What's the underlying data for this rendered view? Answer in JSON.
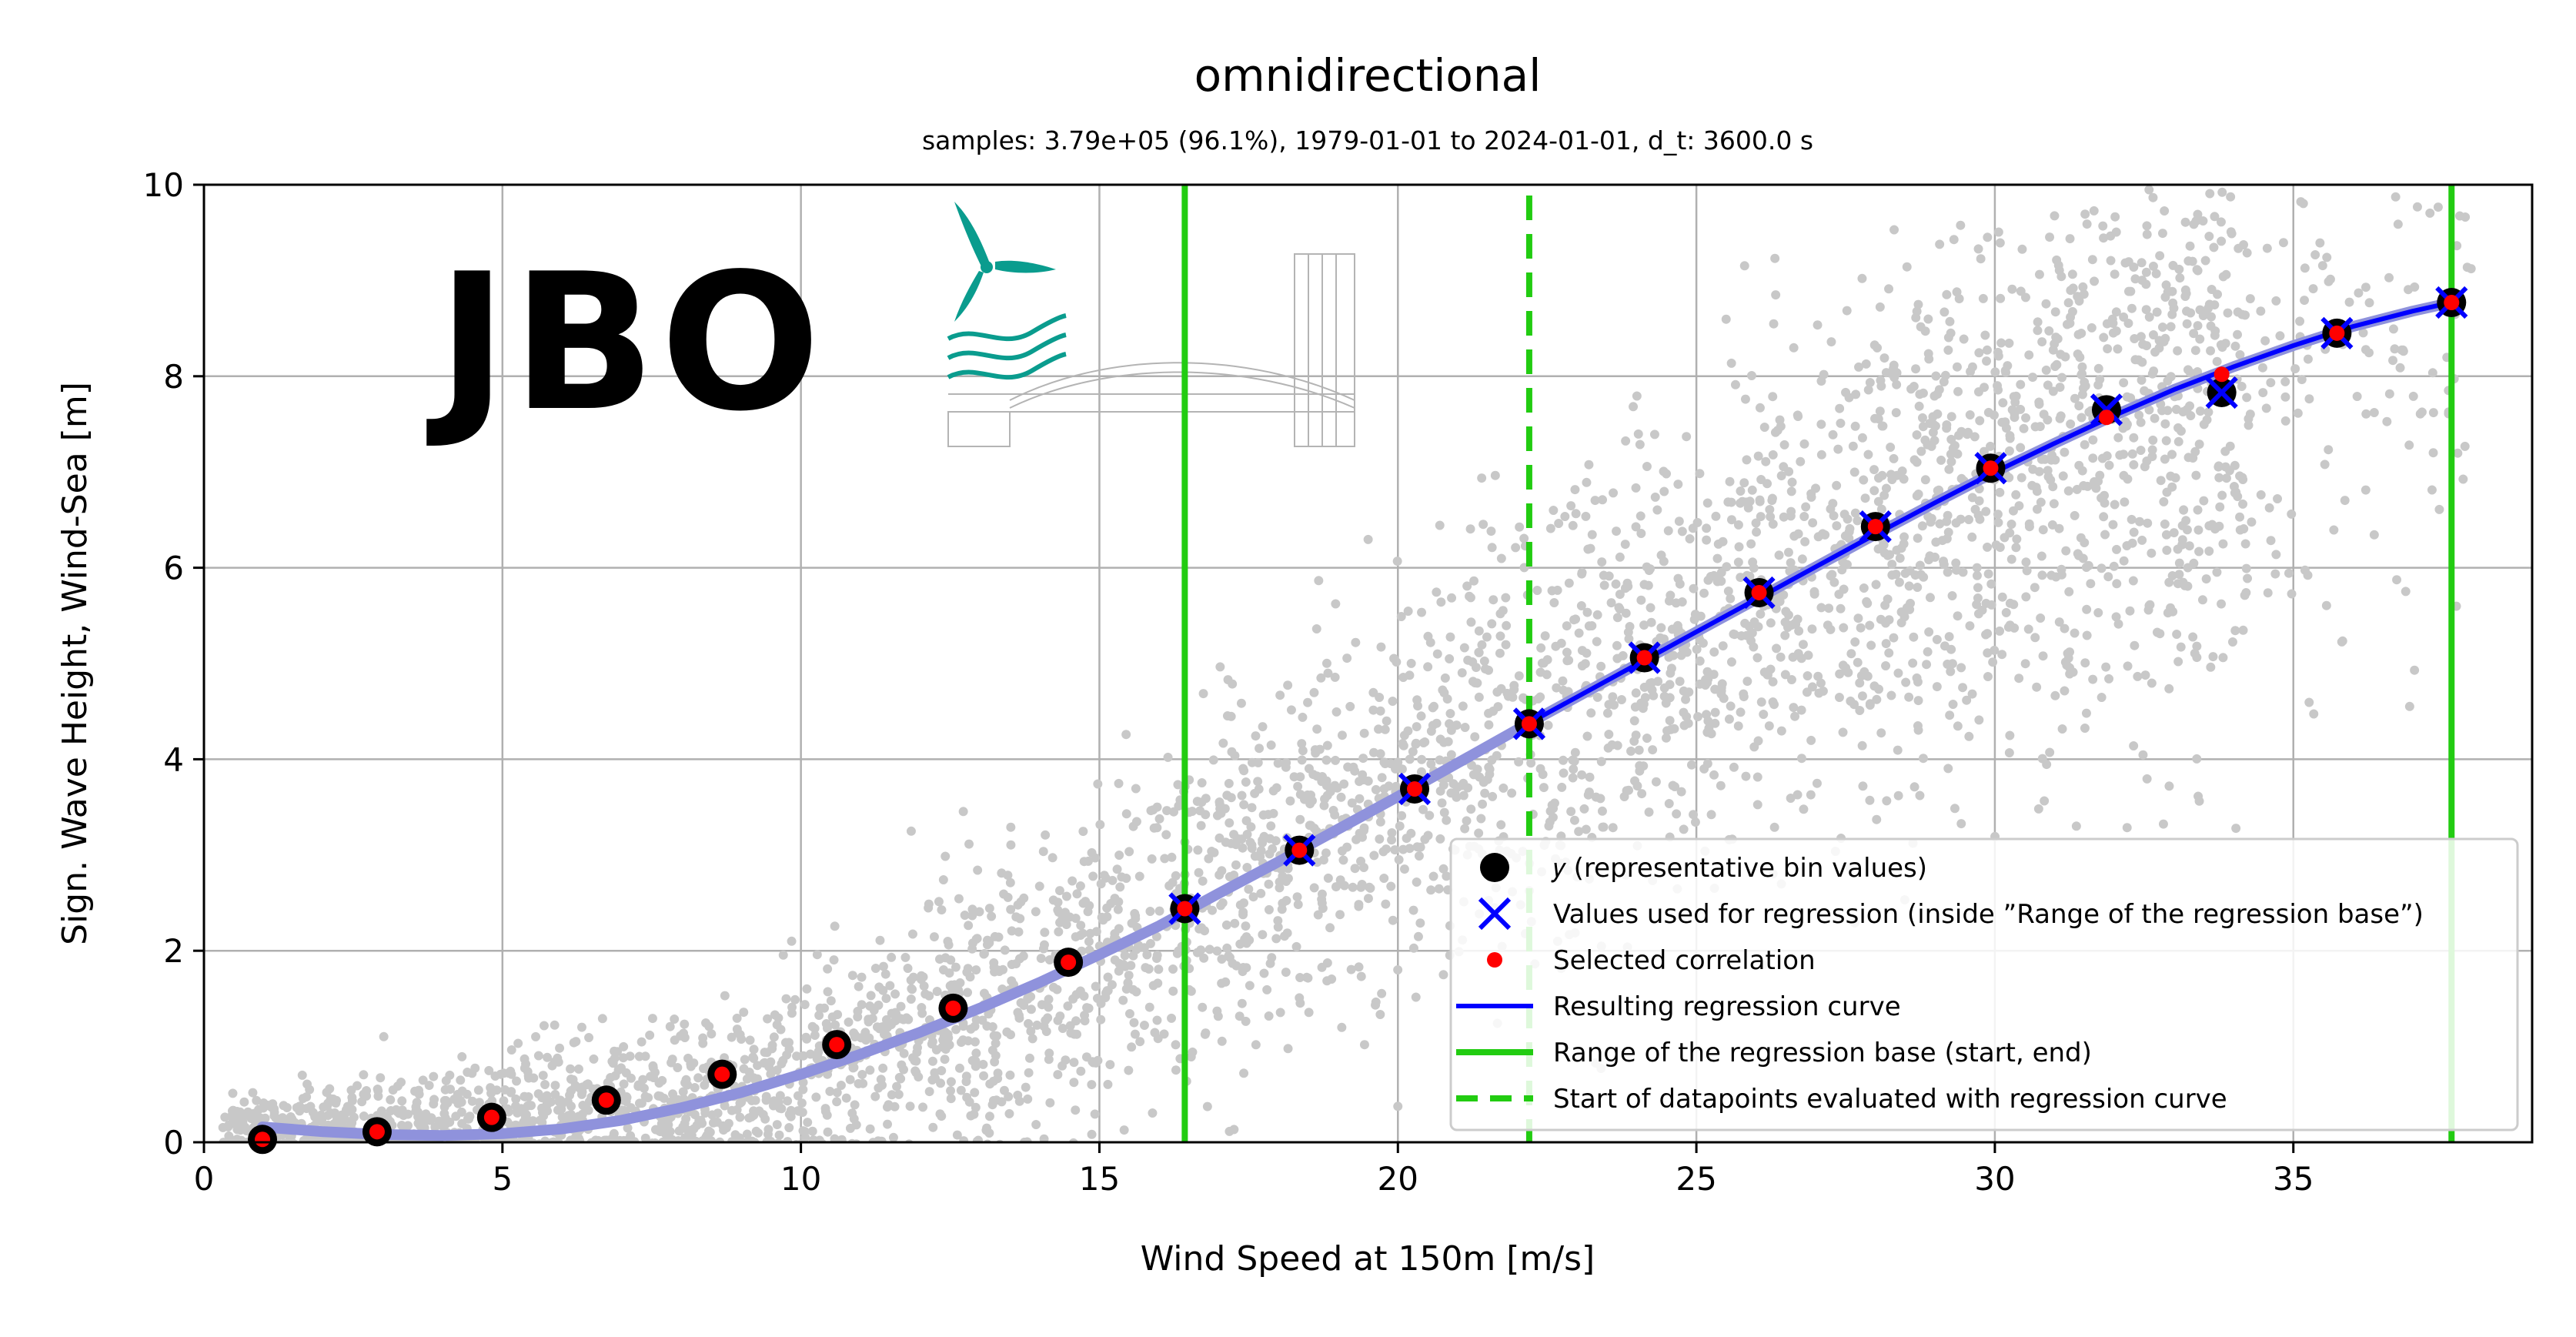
{
  "chart_data": {
    "type": "scatter",
    "title": "omnidirectional",
    "subtitle": "samples: 3.79e+05 (96.1%), 1979-01-01 to 2024-01-01, d_t: 3600.0 s",
    "xlabel": "Wind Speed at 150m [m/s]",
    "ylabel": "Sign. Wave Height, Wind-Sea [m]",
    "xlim": [
      0,
      39
    ],
    "ylim": [
      0,
      10
    ],
    "xticks": [
      0,
      5,
      10,
      15,
      20,
      25,
      30,
      35
    ],
    "yticks": [
      0,
      2,
      4,
      6,
      8,
      10
    ],
    "grid": true,
    "legend_position": "lower-right",
    "logo_text": "JBO",
    "colors": {
      "scatter": "#c8c8c8",
      "bin": "#000000",
      "regression_x": "#0000ff",
      "selected": "#ff0000",
      "curve": "#0000ff",
      "curve_faded": "#8f92dc",
      "range_lines": "#22cc11",
      "grid": "#b0b0b0",
      "logo_text": "#858073",
      "logo_mark": "#0a9c8e"
    },
    "representative_bins": {
      "x": [
        0.98,
        2.9,
        4.82,
        6.74,
        8.68,
        10.6,
        12.55,
        14.48,
        16.43,
        18.35,
        20.28,
        22.2,
        24.13,
        26.05,
        28.0,
        29.93,
        31.87,
        33.8,
        35.73,
        37.65
      ],
      "y": [
        0.03,
        0.11,
        0.26,
        0.44,
        0.71,
        1.02,
        1.4,
        1.88,
        2.44,
        3.05,
        3.69,
        4.37,
        5.06,
        5.74,
        6.43,
        7.04,
        7.65,
        7.83,
        8.45,
        8.77
      ]
    },
    "regression_points": {
      "x": [
        16.43,
        18.35,
        20.28,
        22.2,
        24.13,
        26.05,
        28.0,
        29.93,
        31.87,
        33.8,
        35.73,
        37.65
      ],
      "y": [
        2.44,
        3.05,
        3.69,
        4.37,
        5.06,
        5.74,
        6.43,
        7.04,
        7.65,
        7.83,
        8.45,
        8.77
      ]
    },
    "selected_correlation": {
      "x": [
        0.98,
        2.9,
        4.82,
        6.74,
        8.68,
        10.6,
        12.55,
        14.48,
        16.43,
        18.35,
        20.28,
        22.2,
        24.13,
        26.05,
        28.0,
        29.93,
        31.87,
        33.8,
        35.73,
        37.65
      ],
      "y": [
        0.03,
        0.11,
        0.26,
        0.44,
        0.71,
        1.02,
        1.4,
        1.88,
        2.44,
        3.05,
        3.69,
        4.37,
        5.06,
        5.74,
        6.43,
        7.04,
        7.57,
        8.02,
        8.45,
        8.77
      ]
    },
    "regression_curve": {
      "x": [
        0.98,
        2.0,
        3.0,
        4.0,
        5.0,
        6.0,
        7.0,
        8.0,
        9.0,
        10.0,
        11.0,
        12.0,
        13.0,
        14.0,
        15.0,
        16.0,
        17.0,
        18.0,
        19.0,
        20.0,
        21.0,
        22.0,
        23.0,
        24.0,
        25.0,
        26.0,
        27.0,
        28.0,
        29.0,
        30.0,
        31.0,
        32.0,
        33.0,
        34.0,
        35.0,
        36.0,
        37.0,
        37.65
      ],
      "y": [
        0.16,
        0.11,
        0.08,
        0.07,
        0.09,
        0.14,
        0.23,
        0.36,
        0.52,
        0.71,
        0.92,
        1.15,
        1.4,
        1.67,
        1.96,
        2.26,
        2.6,
        2.93,
        3.27,
        3.61,
        3.96,
        4.31,
        4.65,
        4.99,
        5.33,
        5.67,
        6.01,
        6.35,
        6.68,
        7.0,
        7.3,
        7.59,
        7.86,
        8.1,
        8.32,
        8.52,
        8.68,
        8.77
      ],
      "solid_from_x": 22.2
    },
    "regression_base_range": {
      "start": 16.43,
      "end": 37.65
    },
    "evaluation_start": 22.2,
    "legend": [
      {
        "symbol": "circle",
        "label": "𝑦 (representative bin values)"
      },
      {
        "symbol": "x",
        "label": "Values used for regression (inside ”Range of the regression base”)"
      },
      {
        "symbol": "dot",
        "label": "Selected correlation"
      },
      {
        "symbol": "line",
        "label": "Resulting regression curve"
      },
      {
        "symbol": "green-line",
        "label": "Range of the regression base (start, end)"
      },
      {
        "symbol": "green-dashed",
        "label": "Start of datapoints evaluated with regression curve"
      }
    ]
  }
}
